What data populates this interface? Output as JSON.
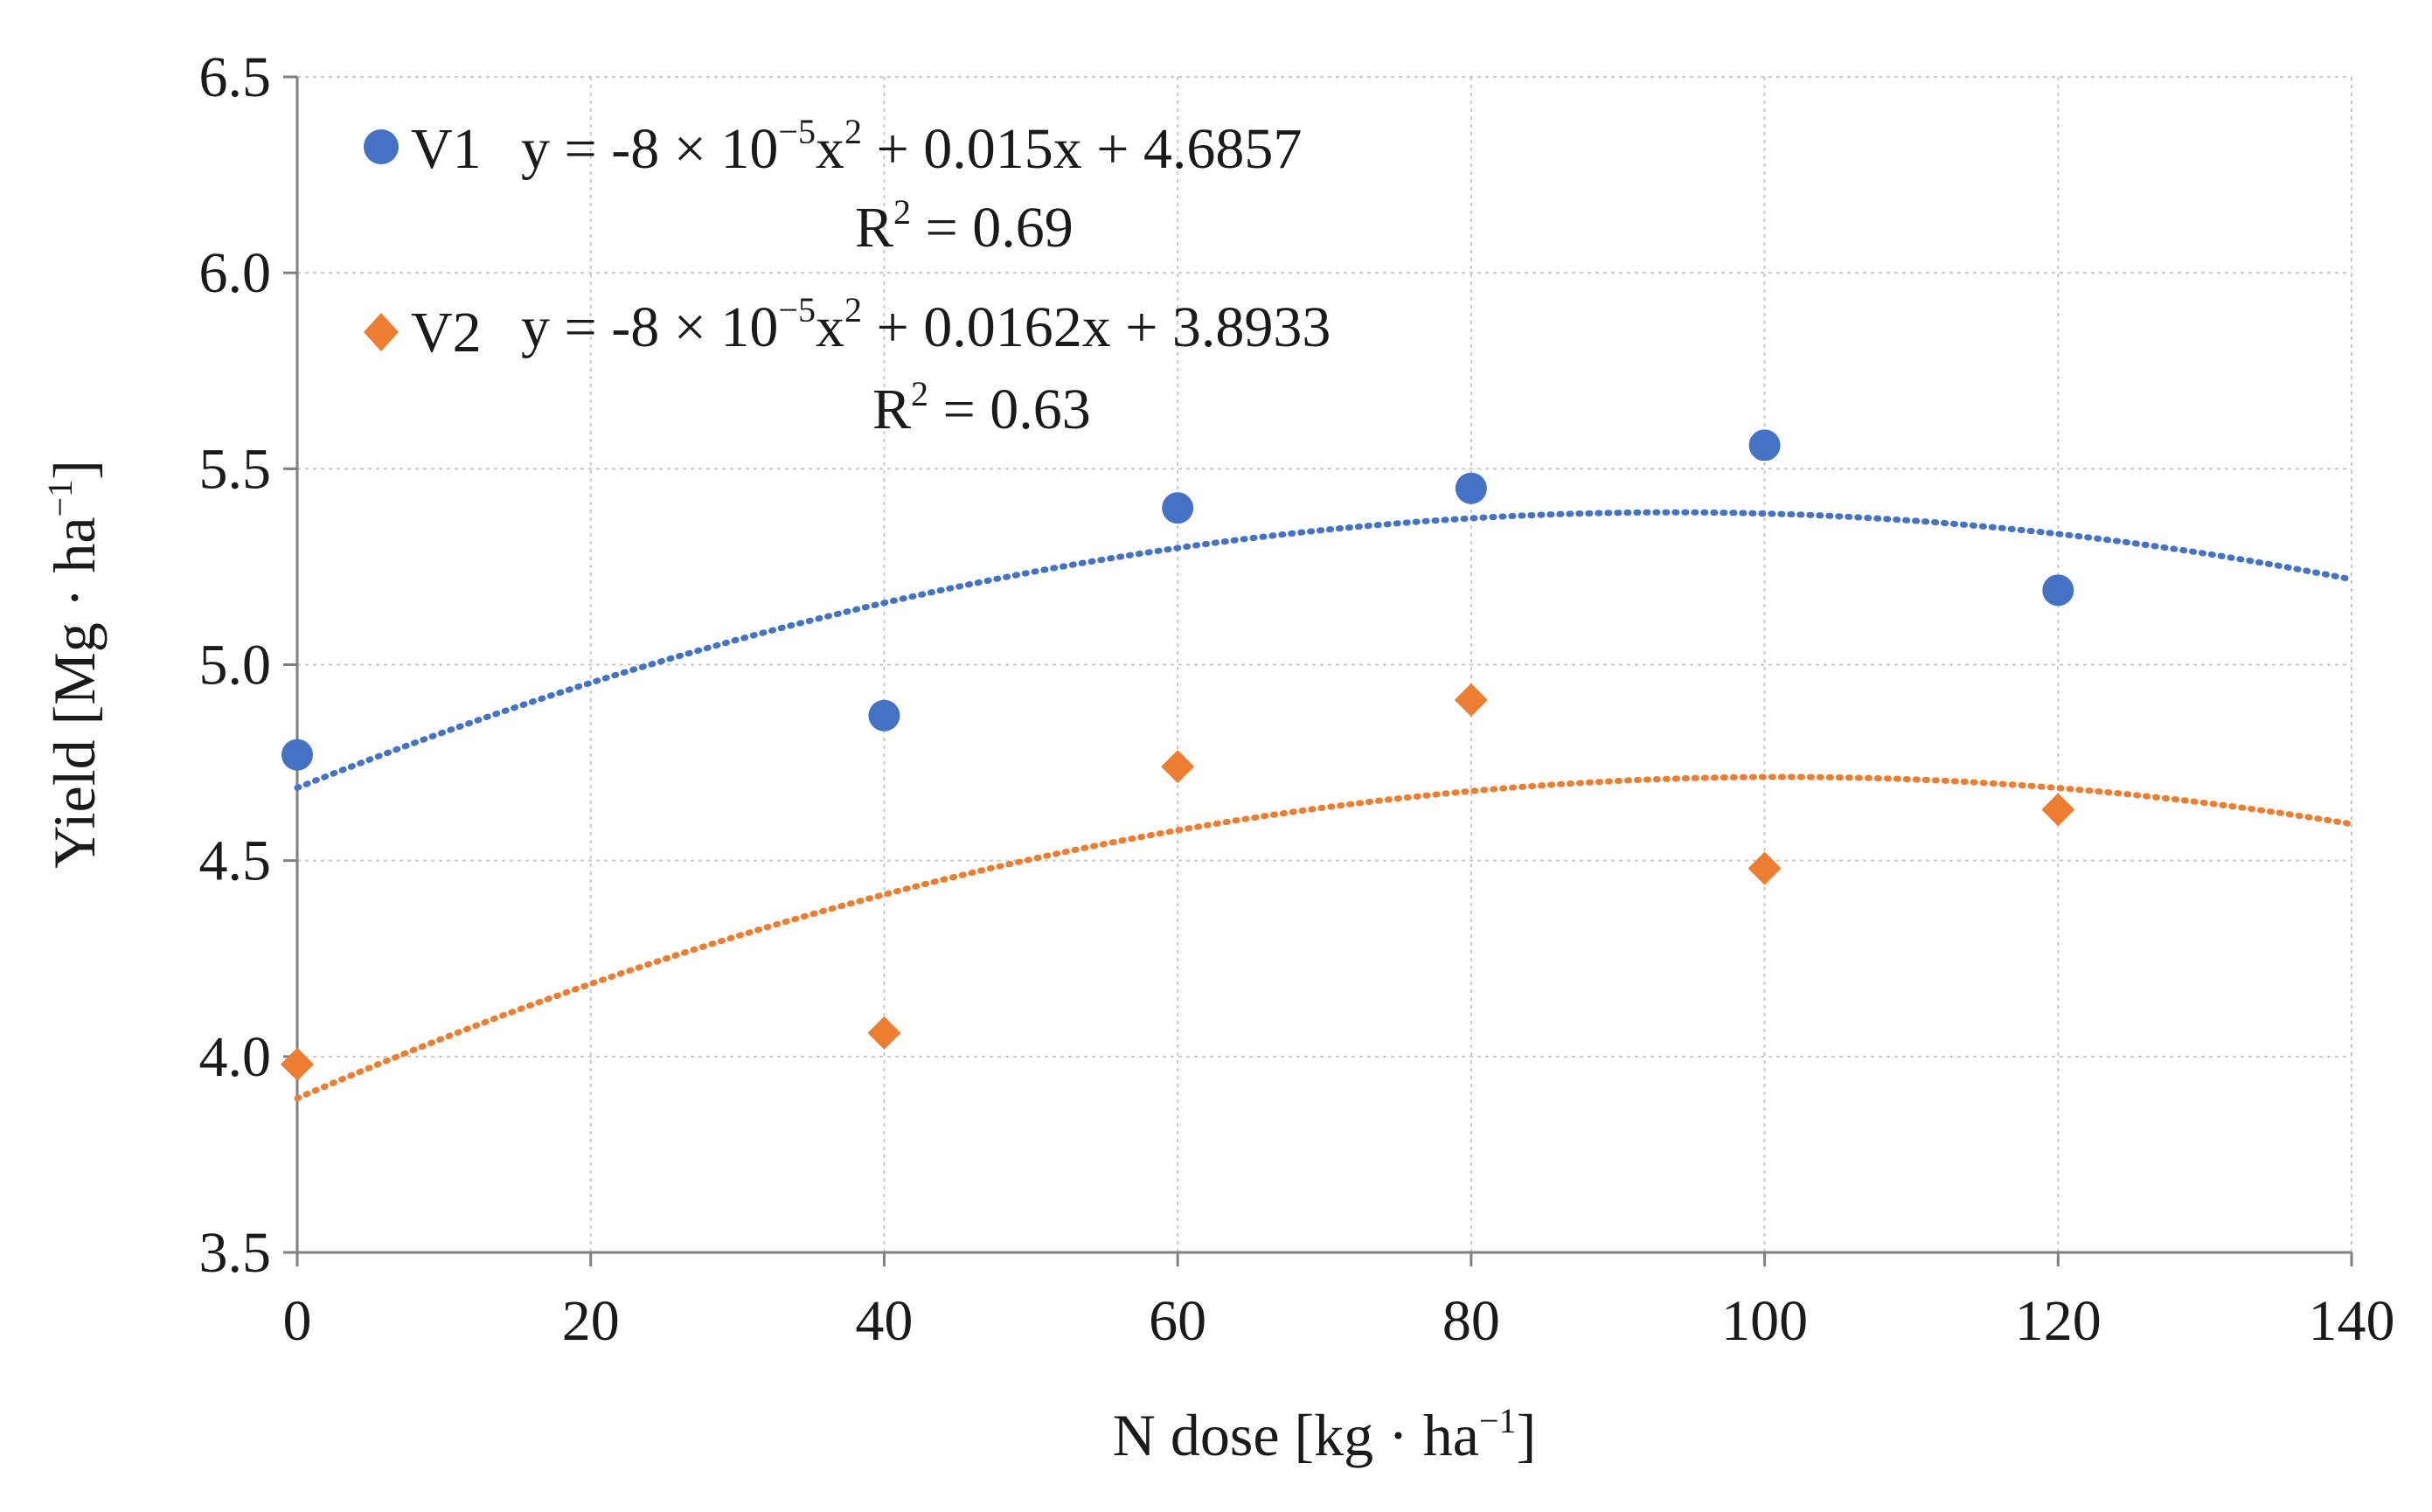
{
  "chart_data": {
    "type": "scatter",
    "title": "",
    "xlabel": "N dose [kg · ha",
    "xlabel_sup": "−1",
    "xlabel_end": "]",
    "ylabel": "Yield [Mg · ha",
    "ylabel_sup": "−1",
    "ylabel_end": "]",
    "xlim": [
      0,
      140
    ],
    "ylim": [
      3.5,
      6.5
    ],
    "xticks": [
      0,
      20,
      40,
      60,
      80,
      100,
      120,
      140
    ],
    "yticks": [
      3.5,
      4.0,
      4.5,
      5.0,
      5.5,
      6.0,
      6.5
    ],
    "x_tick_labels": [
      "0",
      "20",
      "40",
      "60",
      "80",
      "100",
      "120",
      "140"
    ],
    "y_tick_labels": [
      "3.5",
      "4.0",
      "4.5",
      "5.0",
      "5.5",
      "6.0",
      "6.5"
    ],
    "grid": true,
    "legend_position": "top-left",
    "series": [
      {
        "name": "V1",
        "marker": "circle",
        "color": "#4472C4",
        "x": [
          0,
          40,
          60,
          80,
          100,
          120
        ],
        "values": [
          4.77,
          4.87,
          5.4,
          5.45,
          5.56,
          5.19
        ],
        "trendline": {
          "type": "polynomial",
          "a": -8e-05,
          "b": 0.015,
          "c": 4.6857,
          "x_range": [
            0,
            140
          ]
        },
        "equation_prefix": "y = -8 × 10",
        "equation_exp": "−5",
        "equation_mid": "x",
        "equation_pow": "2",
        "equation_suffix": " + 0.015x + 4.6857",
        "r2_label": "R",
        "r2_sup": "2",
        "r2_value": " = 0.69"
      },
      {
        "name": "V2",
        "marker": "diamond",
        "color": "#ED7D31",
        "x": [
          0,
          40,
          60,
          80,
          100,
          120
        ],
        "values": [
          3.98,
          4.06,
          4.74,
          4.91,
          4.48,
          4.63
        ],
        "trendline": {
          "type": "polynomial",
          "a": -8e-05,
          "b": 0.0162,
          "c": 3.8933,
          "x_range": [
            0,
            140
          ]
        },
        "equation_prefix": "y = -8 × 10",
        "equation_exp": "−5",
        "equation_mid": "x",
        "equation_pow": "2",
        "equation_suffix": " + 0.0162x + 3.8933",
        "r2_label": "R",
        "r2_sup": "2",
        "r2_value": " = 0.63"
      }
    ]
  }
}
